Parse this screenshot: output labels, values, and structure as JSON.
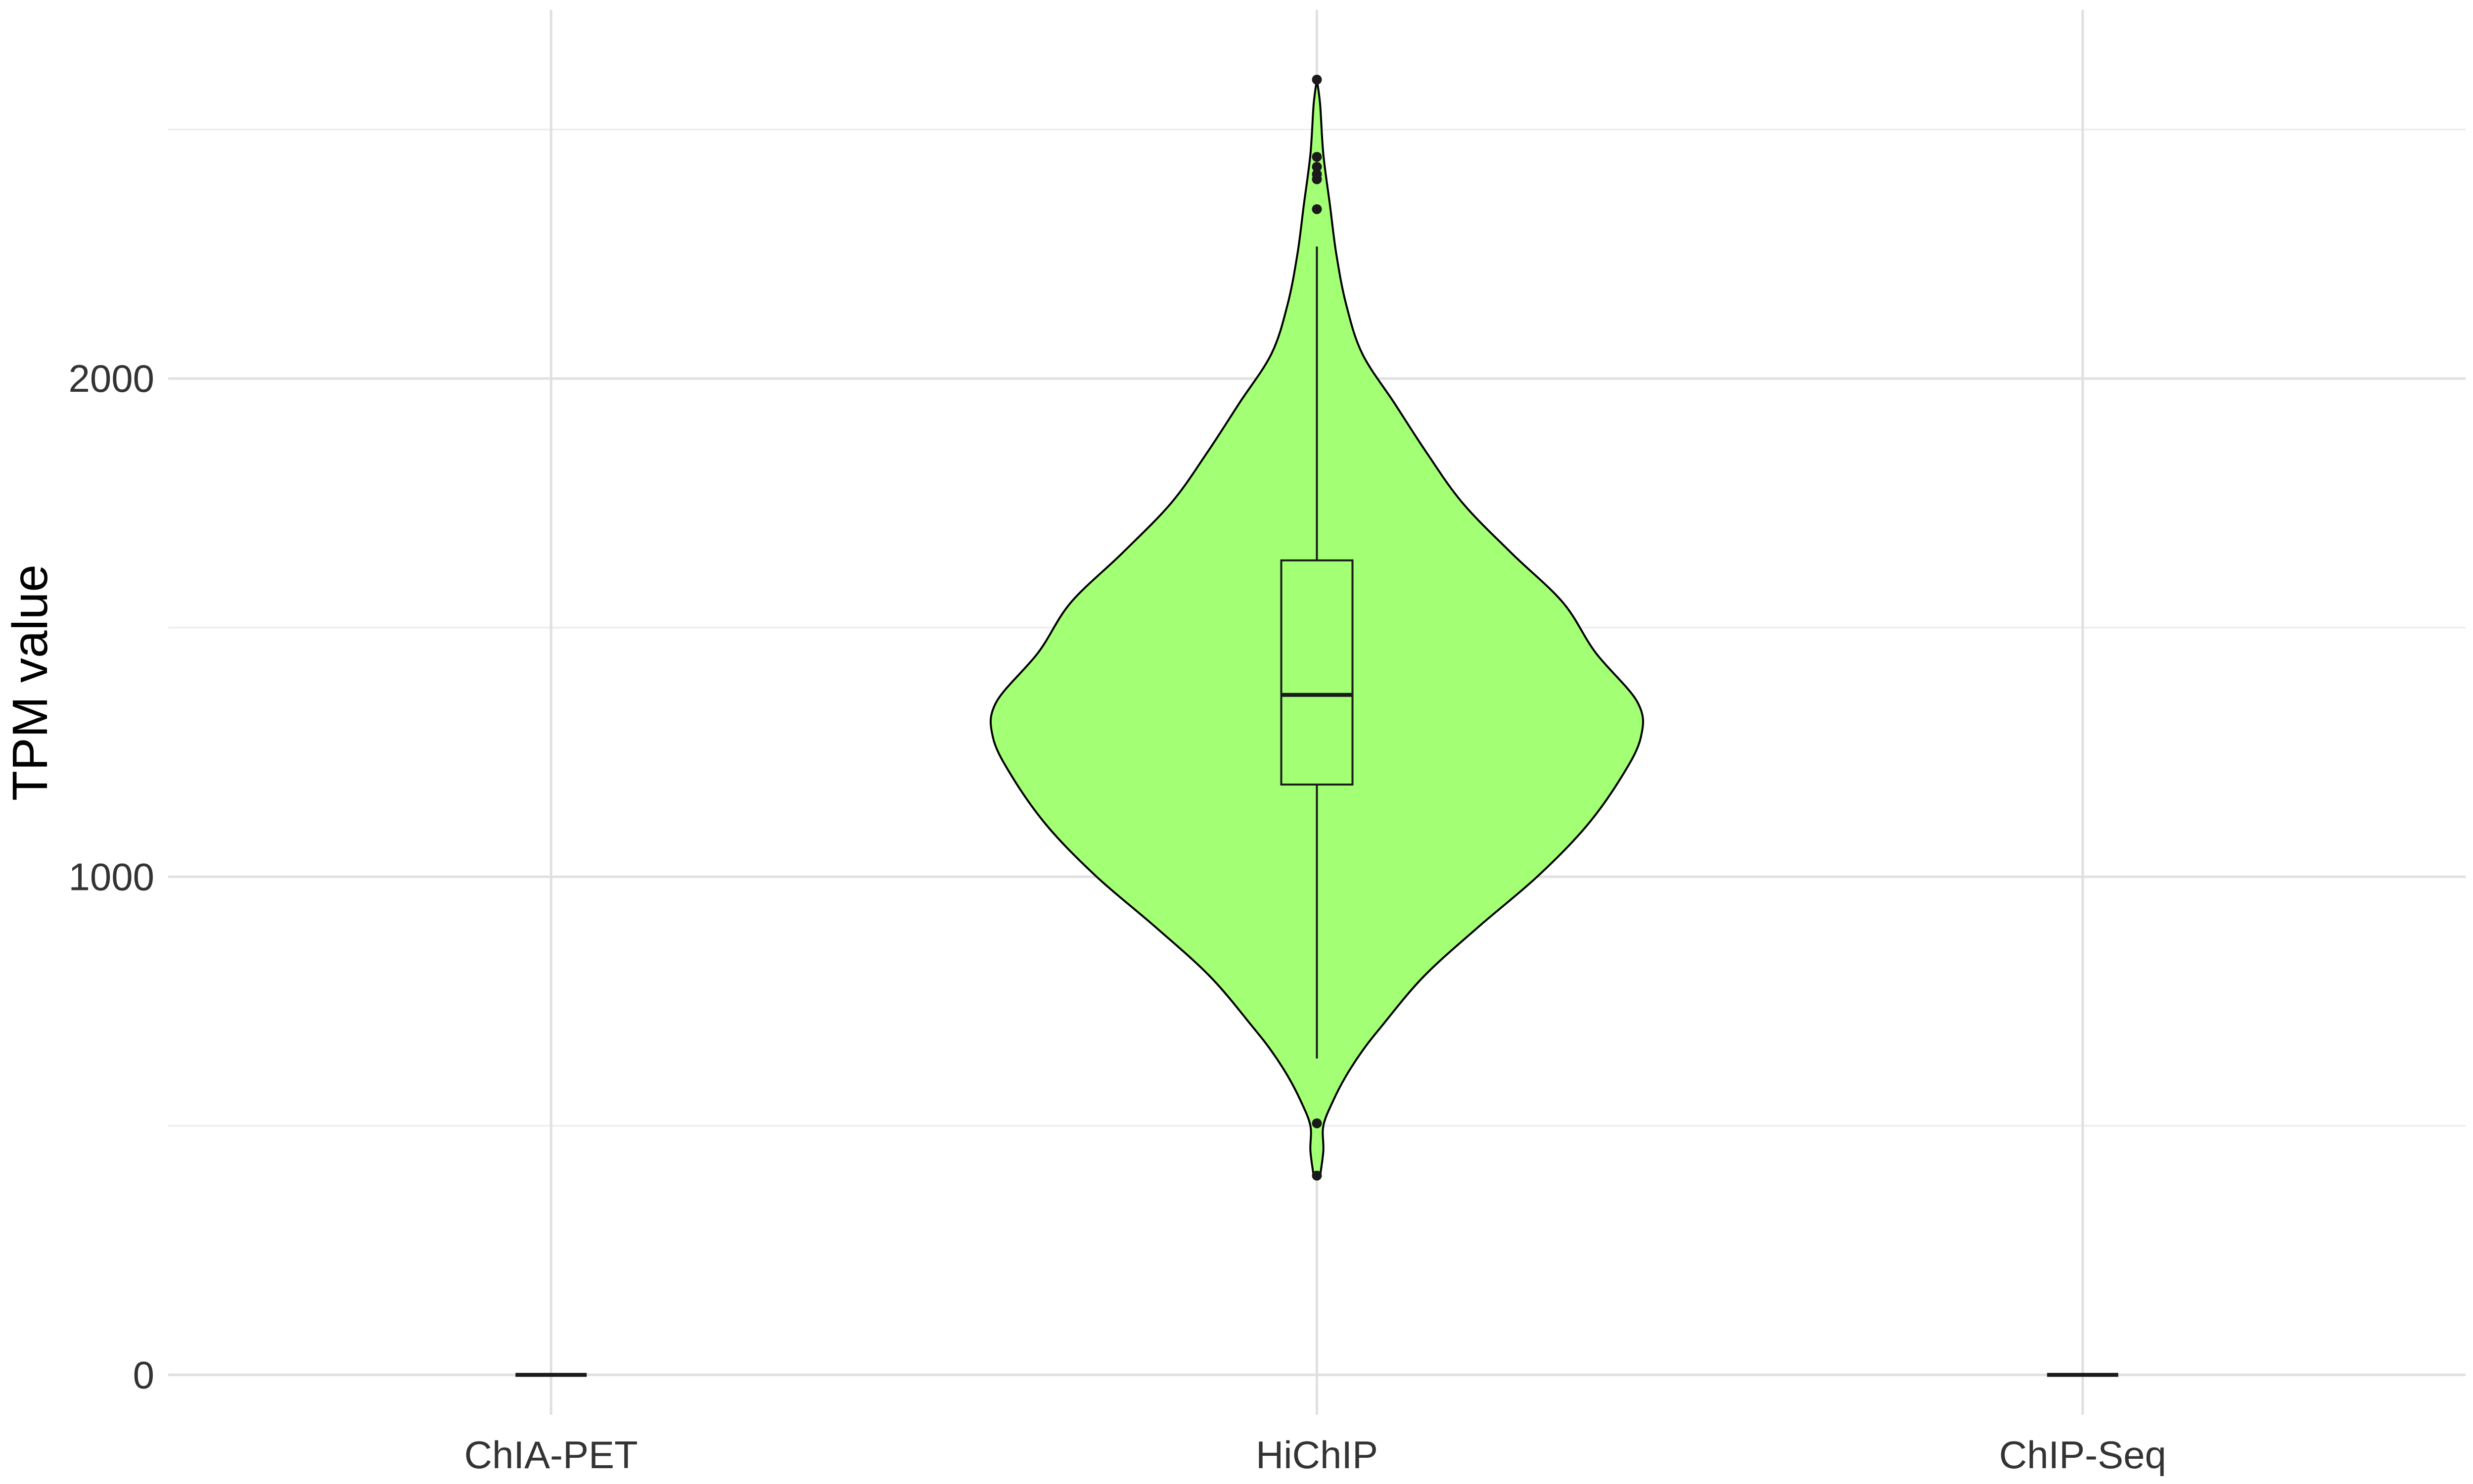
{
  "chart_data": {
    "type": "violin",
    "title": "",
    "xlabel": "",
    "ylabel": "TPM value",
    "categories": [
      "ChIA-PET",
      "HiChIP",
      "ChIP-Seq"
    ],
    "ylim": [
      -80,
      2740
    ],
    "y_ticks": [
      0,
      1000,
      2000
    ],
    "y_minor_ticks": [
      500,
      1500,
      2500
    ],
    "grid": true,
    "fill_color": "#a3ff73",
    "line_color": "#000000",
    "groups": [
      {
        "name": "ChIA-PET",
        "box": {
          "q1": 0,
          "median": 0,
          "q3": 0,
          "whisker_low": 0,
          "whisker_high": 0
        },
        "outliers": [],
        "density": []
      },
      {
        "name": "HiChIP",
        "box": {
          "q1": 1185,
          "median": 1365,
          "q3": 1635,
          "whisker_low": 635,
          "whisker_high": 2265
        },
        "outliers": [
          2600,
          2445,
          2425,
          2410,
          2400,
          2340,
          505,
          400
        ],
        "density": [
          [
            400,
            0.01
          ],
          [
            450,
            0.02
          ],
          [
            500,
            0.02
          ],
          [
            550,
            0.05
          ],
          [
            600,
            0.09
          ],
          [
            650,
            0.14
          ],
          [
            700,
            0.2
          ],
          [
            800,
            0.33
          ],
          [
            900,
            0.5
          ],
          [
            1000,
            0.68
          ],
          [
            1100,
            0.83
          ],
          [
            1200,
            0.94
          ],
          [
            1280,
            1.0
          ],
          [
            1350,
            0.99
          ],
          [
            1450,
            0.86
          ],
          [
            1550,
            0.76
          ],
          [
            1650,
            0.6
          ],
          [
            1750,
            0.45
          ],
          [
            1850,
            0.34
          ],
          [
            1950,
            0.24
          ],
          [
            2050,
            0.14
          ],
          [
            2150,
            0.09
          ],
          [
            2250,
            0.06
          ],
          [
            2350,
            0.04
          ],
          [
            2450,
            0.02
          ],
          [
            2550,
            0.01
          ],
          [
            2600,
            0.0
          ]
        ]
      },
      {
        "name": "ChIP-Seq",
        "box": {
          "q1": 0,
          "median": 0,
          "q3": 0,
          "whisker_low": 0,
          "whisker_high": 0
        },
        "outliers": [],
        "density": []
      }
    ]
  }
}
